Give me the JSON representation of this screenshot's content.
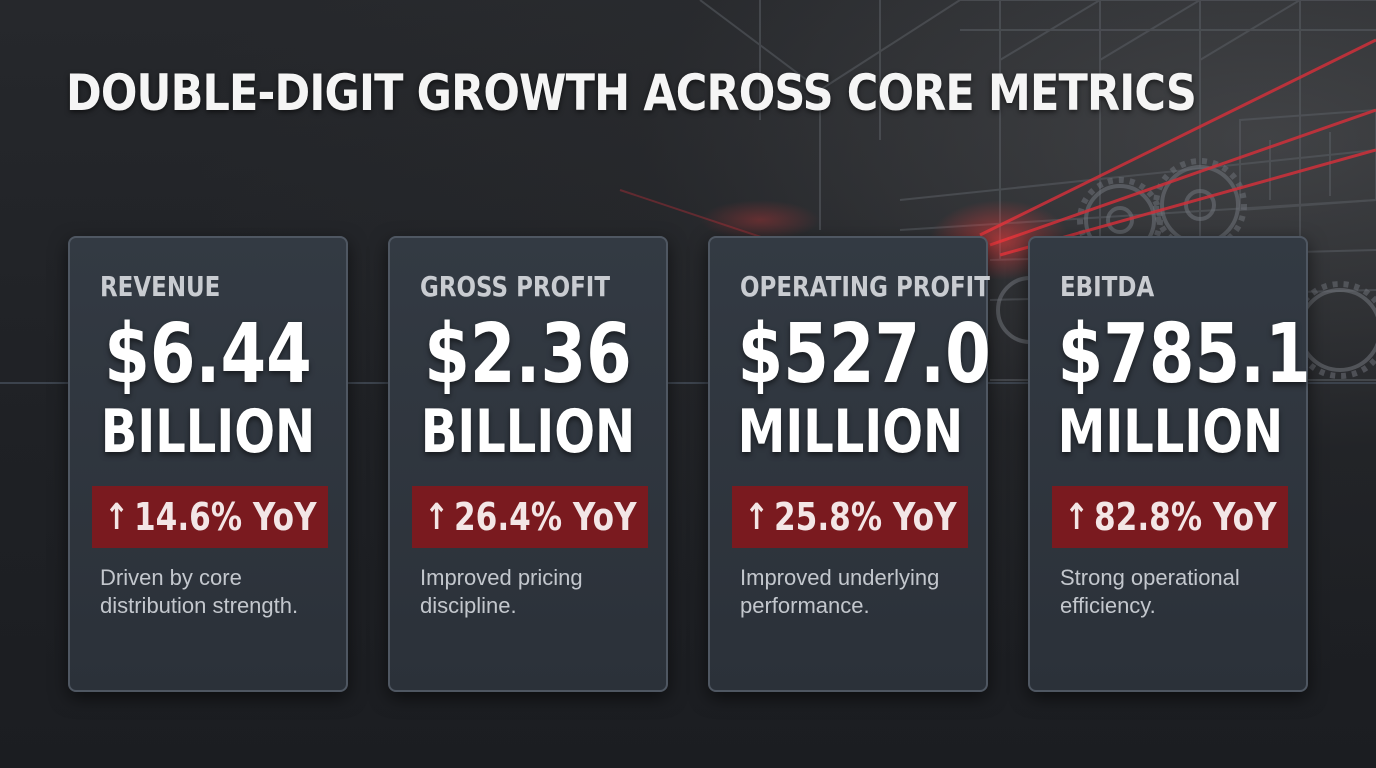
{
  "title": "DOUBLE-DIGIT GROWTH ACROSS CORE METRICS",
  "colors": {
    "background": "#1d1f23",
    "card": "#2f353d",
    "card_border": "#4f5762",
    "badge": "#7a1a1f",
    "accent_line": "#d0303a"
  },
  "cards": [
    {
      "label": "REVENUE",
      "amount": "$6.44",
      "unit": "BILLION",
      "change_icon": "arrow-up-icon",
      "change_arrow": "↑",
      "change": "14.6% YoY",
      "description": "Driven by core distribution strength."
    },
    {
      "label": "GROSS PROFIT",
      "amount": "$2.36",
      "unit": "BILLION",
      "change_icon": "arrow-up-icon",
      "change_arrow": "↑",
      "change": "26.4% YoY",
      "description": "Improved pricing discipline."
    },
    {
      "label": "OPERATING PROFIT",
      "amount": "$527.0",
      "unit": "MILLION",
      "change_icon": "arrow-up-icon",
      "change_arrow": "↑",
      "change": "25.8% YoY",
      "description": "Improved underlying performance."
    },
    {
      "label": "EBITDA",
      "amount": "$785.1",
      "unit": "MILLION",
      "change_icon": "arrow-up-icon",
      "change_arrow": "↑",
      "change": "82.8% YoY",
      "description": "Strong operational efficiency."
    }
  ]
}
